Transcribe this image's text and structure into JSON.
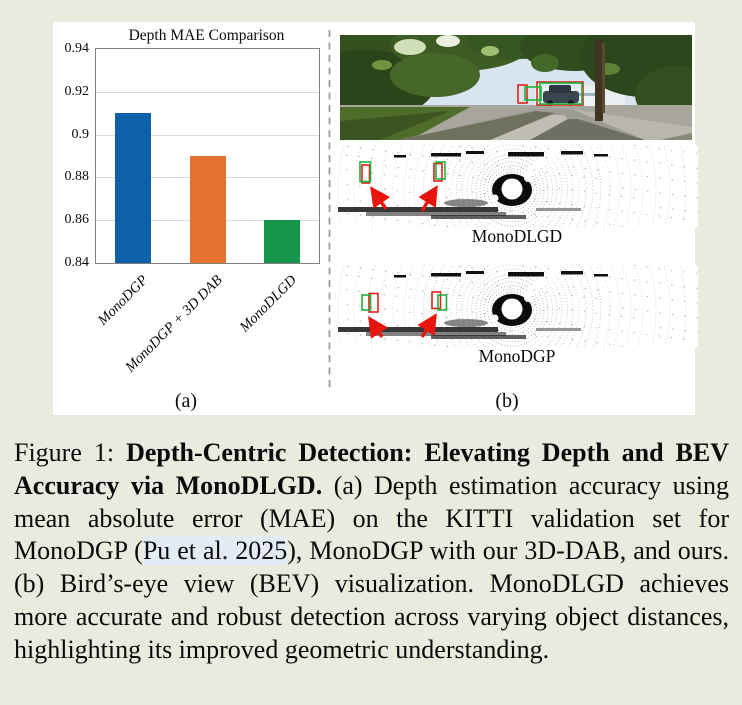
{
  "page": {
    "background_color": "#e9ebdf",
    "panel_background": "#ffffff"
  },
  "chart_data": {
    "type": "bar",
    "title": "Depth MAE Comparison",
    "categories": [
      "MonoDGP",
      "MonoDGP + 3D DAB",
      "MonoDLGD"
    ],
    "values": [
      0.91,
      0.89,
      0.86
    ],
    "bar_colors": [
      "#0d61a9",
      "#e5722f",
      "#16964b"
    ],
    "xlabel": "",
    "ylabel": "",
    "ylim": [
      0.84,
      0.94
    ],
    "ytick_labels": [
      "0.94",
      "0.92",
      "0.9",
      "0.88",
      "0.86",
      "0.84"
    ],
    "grid": true,
    "legend": false
  },
  "figure": {
    "panel_a_label": "(a)",
    "panel_b_label": "(b)",
    "bev_top_label": "MonoDLGD",
    "bev_bottom_label": "MonoDGP",
    "detection_colors": {
      "green_box": "#1fb33c",
      "red_box": "#e0231d",
      "arrow_red": "#e8150f"
    }
  },
  "caption": {
    "prefix": "Figure 1:",
    "bold_title": "Depth-Centric Detection: Elevating Depth and BEV Accuracy via MonoDLGD.",
    "body_part1": "(a) Depth estimation accuracy using mean absolute error (MAE) on the KITTI validation set for MonoDGP (",
    "reference": "Pu et al. 2025",
    "body_part2": "), MonoDGP with our 3D-DAB, and ours. (b) Bird’s-eye view (BEV) visualization. MonoDLGD achieves more accurate and robust detection across varying object distances, highlighting its improved geometric understanding."
  }
}
